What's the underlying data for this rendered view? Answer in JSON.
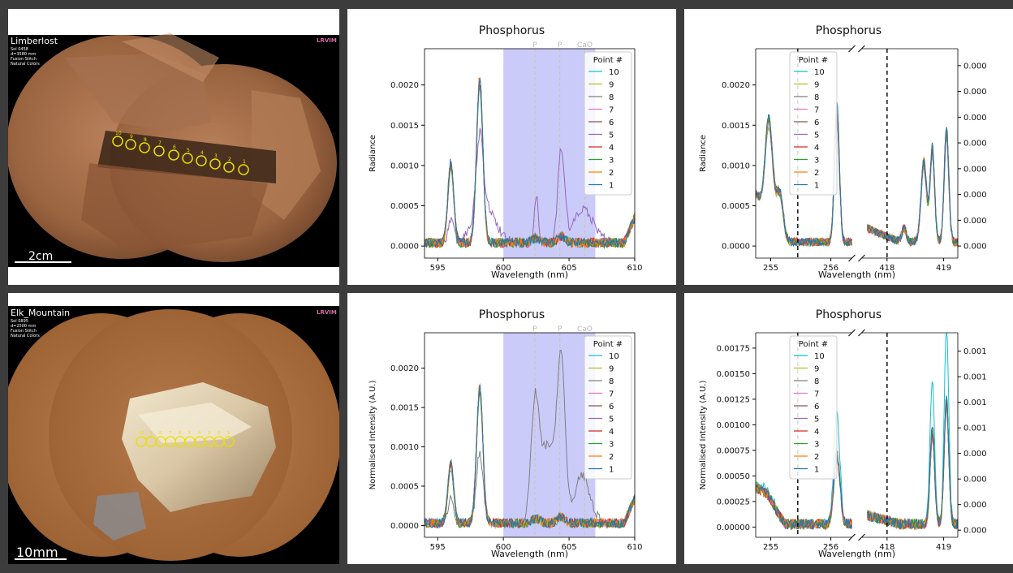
{
  "photos": [
    {
      "target": "Limberlost",
      "meta": [
        "Sol 0458",
        "d=3580 mm",
        "Fusion Stitch",
        "Natural Colors"
      ],
      "scalebar": "2cm",
      "points": [
        "10",
        "9",
        "8",
        "7",
        "6",
        "5",
        "4",
        "3",
        "2",
        "1"
      ],
      "logo": "LRVIM"
    },
    {
      "target": "Elk_Mountain",
      "meta": [
        "Sol 0895",
        "d=2500 mm",
        "Fusion Stitch",
        "Natural Colors"
      ],
      "scalebar": "10mm",
      "points": [
        "10",
        "9",
        "8",
        "7",
        "6",
        "5",
        "4",
        "3",
        "2",
        "1"
      ],
      "logo": "LRVIM"
    }
  ],
  "legend": {
    "title": "Point #",
    "labels": [
      "10",
      "9",
      "8",
      "7",
      "6",
      "5",
      "4",
      "3",
      "2",
      "1"
    ],
    "colors": [
      "#17becf",
      "#bcbd22",
      "#7f7f7f",
      "#e377c2",
      "#8c564b",
      "#9467bd",
      "#d62728",
      "#2ca02c",
      "#ff7f0e",
      "#1f77b4"
    ]
  },
  "chart_data": [
    {
      "id": "top-mid",
      "type": "line",
      "title": "Phosphorus",
      "xlabel": "Wavelength (nm)",
      "ylabel": "Radiance",
      "xlim": [
        594,
        610
      ],
      "ylim": [
        -0.00015,
        0.00245
      ],
      "xticks": [
        {
          "v": 595,
          "l": "595"
        },
        {
          "v": 600,
          "l": "600"
        },
        {
          "v": 605,
          "l": "605"
        },
        {
          "v": 610,
          "l": "610"
        }
      ],
      "yticks": [
        {
          "v": 0,
          "l": "0.0000"
        },
        {
          "v": 0.0005,
          "l": "0.0005"
        },
        {
          "v": 0.001,
          "l": "0.0010"
        },
        {
          "v": 0.0015,
          "l": "0.0015"
        },
        {
          "v": 0.002,
          "l": "0.0020"
        }
      ],
      "shade": [
        600,
        607
      ],
      "markers": [
        {
          "x": 602.4,
          "label": "P"
        },
        {
          "x": 604.3,
          "label": "P"
        },
        {
          "x": 606.2,
          "label": "CaO"
        }
      ],
      "peaks": [
        {
          "x": 596.0,
          "h": 0.00095,
          "w": 0.22
        },
        {
          "x": 598.2,
          "h": 0.00195,
          "w": 0.24
        }
      ],
      "baseline": 4e-05,
      "special": {
        "index": 5,
        "peaks": [
          {
            "x": 604.4,
            "h": 0.00115,
            "w": 0.25
          },
          {
            "x": 602.5,
            "h": 0.0006,
            "w": 0.15
          },
          {
            "x": 598.5,
            "h": 0.0005,
            "w": 0.8
          },
          {
            "x": 606.1,
            "h": 0.0004,
            "w": 0.8
          }
        ]
      }
    },
    {
      "id": "top-right",
      "type": "line",
      "title": "Phosphorus",
      "xlabel": "Wavelength (nm)",
      "ylabel": "Radiance",
      "broken_axis": true,
      "segments": [
        {
          "xlim": [
            254.75,
            256.35
          ],
          "xticks": [
            {
              "v": 255,
              "l": "255"
            },
            {
              "v": 256,
              "l": "256"
            }
          ],
          "vline": 255.45
        },
        {
          "xlim": [
            417.55,
            419.25
          ],
          "xticks": [
            {
              "v": 418,
              "l": "418"
            },
            {
              "v": 419,
              "l": "419"
            }
          ],
          "vline": 418.0
        }
      ],
      "ylim": [
        -0.00015,
        0.00245
      ],
      "yticks": [
        {
          "v": 0,
          "l": "0.0000"
        },
        {
          "v": 0.0005,
          "l": "0.0005"
        },
        {
          "v": 0.001,
          "l": "0.0010"
        },
        {
          "v": 0.0015,
          "l": "0.0015"
        },
        {
          "v": 0.002,
          "l": "0.0020"
        }
      ],
      "yticks_right": [
        {
          "v": 0,
          "l": "0.000"
        },
        {
          "v": 0.00032,
          "l": "0.000"
        },
        {
          "v": 0.00064,
          "l": "0.000"
        },
        {
          "v": 0.00096,
          "l": "0.000"
        },
        {
          "v": 0.00128,
          "l": "0.000"
        },
        {
          "v": 0.0016,
          "l": "0.000"
        },
        {
          "v": 0.00192,
          "l": "0.000"
        },
        {
          "v": 0.00224,
          "l": "0.000"
        }
      ],
      "baseline": 5e-05,
      "peaks": [
        [
          {
            "x": 254.97,
            "h": 0.00145,
            "w": 0.06
          },
          {
            "x": 255.15,
            "h": 0.0006,
            "w": 0.06
          },
          {
            "x": 256.1,
            "h": 0.00205,
            "w": 0.04
          }
        ],
        [
          {
            "x": 418.8,
            "h": 0.0014,
            "w": 0.04
          },
          {
            "x": 418.65,
            "h": 0.0012,
            "w": 0.05
          },
          {
            "x": 419.05,
            "h": 0.0017,
            "w": 0.04
          },
          {
            "x": 418.3,
            "h": 0.00022,
            "w": 0.04
          }
        ]
      ],
      "start_level": [
        0.0006,
        0.0002
      ]
    },
    {
      "id": "bot-mid",
      "type": "line",
      "title": "Phosphorus",
      "xlabel": "Wavelength (nm)",
      "ylabel": "Normalised Intensity (A.U.)",
      "xlim": [
        594,
        610
      ],
      "ylim": [
        -0.00015,
        0.00245
      ],
      "xticks": [
        {
          "v": 595,
          "l": "595"
        },
        {
          "v": 600,
          "l": "600"
        },
        {
          "v": 605,
          "l": "605"
        },
        {
          "v": 610,
          "l": "610"
        }
      ],
      "yticks": [
        {
          "v": 0,
          "l": "0.0000"
        },
        {
          "v": 0.0005,
          "l": "0.0005"
        },
        {
          "v": 0.001,
          "l": "0.0010"
        },
        {
          "v": 0.0015,
          "l": "0.0015"
        },
        {
          "v": 0.002,
          "l": "0.0020"
        }
      ],
      "shade": [
        600,
        607
      ],
      "markers": [
        {
          "x": 602.4,
          "label": "P"
        },
        {
          "x": 604.3,
          "label": "P"
        },
        {
          "x": 606.2,
          "label": "CaO"
        }
      ],
      "peaks": [
        {
          "x": 596.0,
          "h": 0.0008,
          "w": 0.22
        },
        {
          "x": 598.2,
          "h": 0.0018,
          "w": 0.24
        }
      ],
      "baseline": 3e-05,
      "special": {
        "index": 2,
        "peaks": [
          {
            "x": 602.4,
            "h": 0.0014,
            "w": 0.3
          },
          {
            "x": 604.4,
            "h": 0.0019,
            "w": 0.3
          },
          {
            "x": 603.4,
            "h": 0.001,
            "w": 0.6
          },
          {
            "x": 606,
            "h": 0.0006,
            "w": 0.6
          }
        ]
      }
    },
    {
      "id": "bot-right",
      "type": "line",
      "title": "Phosphorus",
      "xlabel": "Wavelength (nm)",
      "ylabel": "Normalised Intensity (A.U.)",
      "broken_axis": true,
      "segments": [
        {
          "xlim": [
            254.75,
            256.35
          ],
          "xticks": [
            {
              "v": 255,
              "l": "255"
            },
            {
              "v": 256,
              "l": "256"
            }
          ],
          "vline": 255.45
        },
        {
          "xlim": [
            417.55,
            419.25
          ],
          "xticks": [
            {
              "v": 418,
              "l": "418"
            },
            {
              "v": 419,
              "l": "419"
            }
          ],
          "vline": 418.0
        }
      ],
      "ylim": [
        -0.0001,
        0.0019
      ],
      "yticks": [
        {
          "v": 0,
          "l": "0.00000"
        },
        {
          "v": 0.00025,
          "l": "0.00025"
        },
        {
          "v": 0.0005,
          "l": "0.00050"
        },
        {
          "v": 0.00075,
          "l": "0.00075"
        },
        {
          "v": 0.001,
          "l": "0.00100"
        },
        {
          "v": 0.00125,
          "l": "0.00125"
        },
        {
          "v": 0.0015,
          "l": "0.00150"
        },
        {
          "v": 0.00175,
          "l": "0.00175"
        }
      ],
      "yticks_right": [
        {
          "v": -3e-05,
          "l": "0.000"
        },
        {
          "v": 0.00022,
          "l": "0.000"
        },
        {
          "v": 0.00047,
          "l": "0.000"
        },
        {
          "v": 0.00072,
          "l": "0.000"
        },
        {
          "v": 0.00097,
          "l": "0.001"
        },
        {
          "v": 0.00122,
          "l": "0.001"
        },
        {
          "v": 0.00147,
          "l": "0.001"
        },
        {
          "v": 0.00172,
          "l": "0.001"
        }
      ],
      "baseline": 3e-05,
      "peaks": [
        [
          {
            "x": 256.1,
            "h": 0.0009,
            "w": 0.05
          },
          {
            "x": 254.95,
            "h": 0.0001,
            "w": 0.1
          }
        ],
        [
          {
            "x": 418.8,
            "h": 0.0012,
            "w": 0.04
          },
          {
            "x": 419.05,
            "h": 0.0016,
            "w": 0.04
          }
        ]
      ],
      "start_level": [
        0.00035,
        0.0001
      ]
    }
  ]
}
